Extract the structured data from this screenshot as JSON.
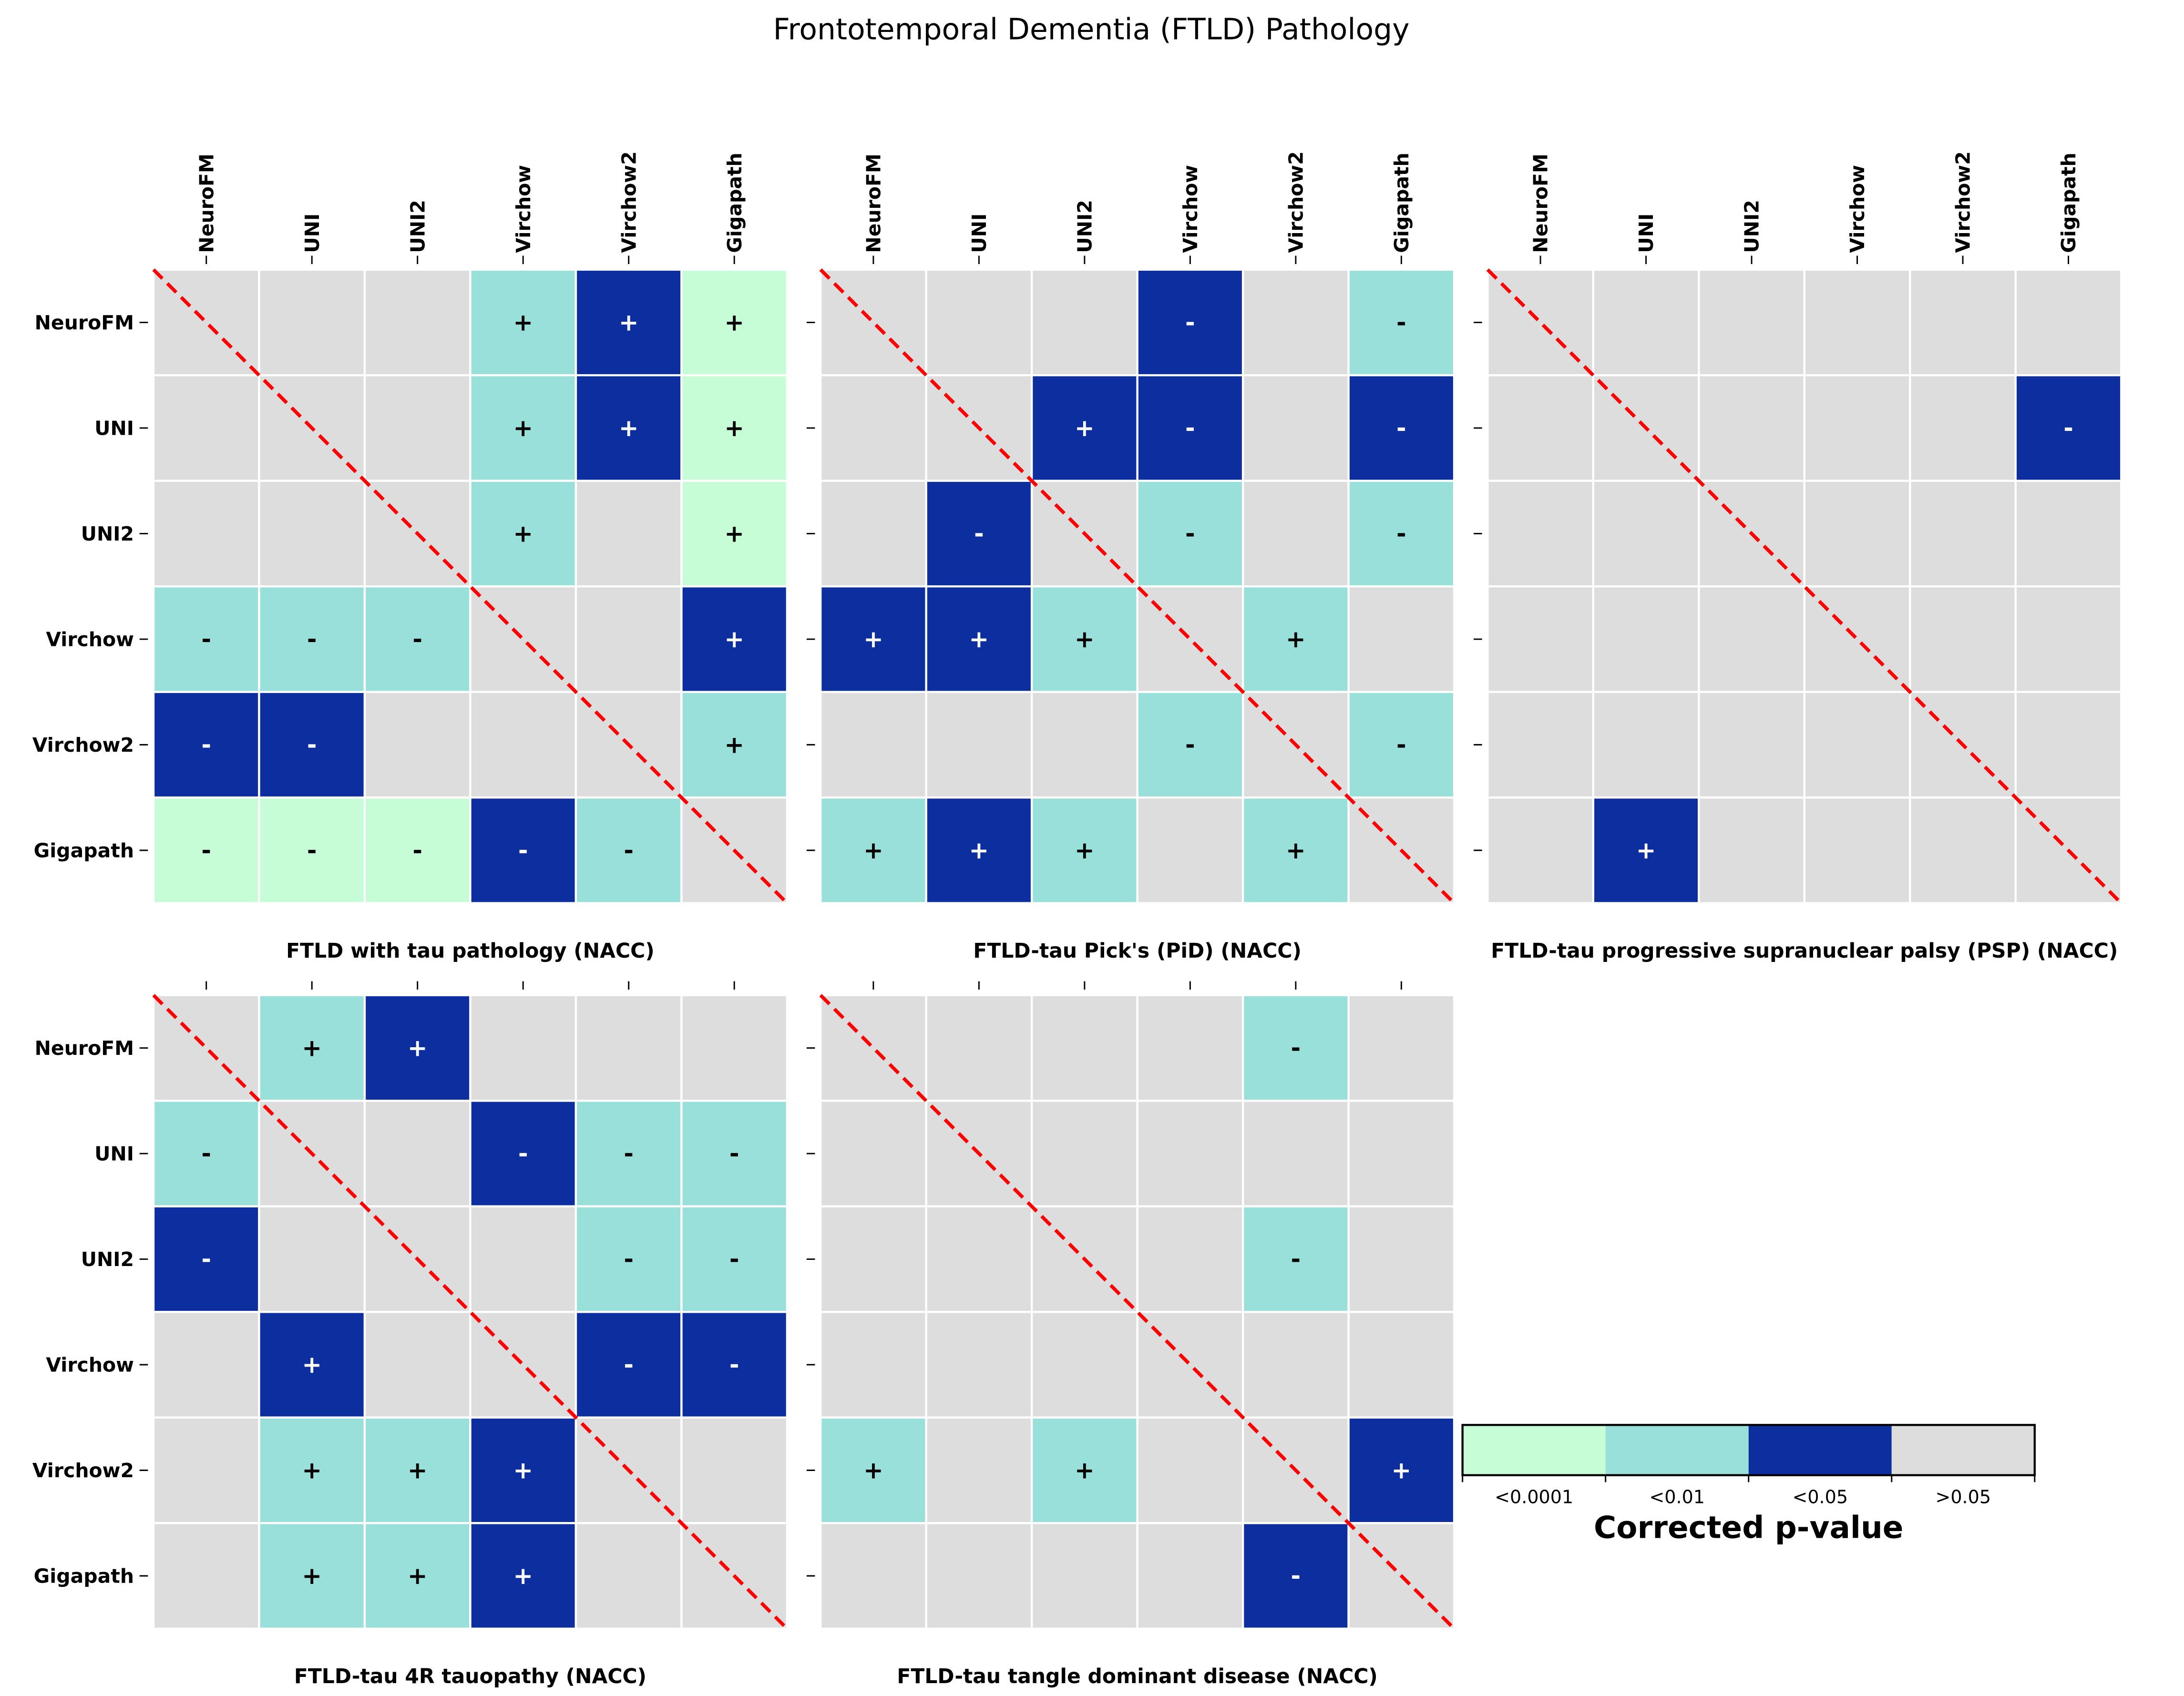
{
  "title": "Frontotemporal Dementia (FTLD) Pathology",
  "colors": {
    "L": "#c6fdd6",
    "M": "#99e0da",
    "D": "#0c2e9f",
    "G": "#dcdddc",
    "diagonal": "#ff0000"
  },
  "colorbar": {
    "title": "Corrected p-value",
    "levels": [
      {
        "code": "L",
        "label": "<0.0001"
      },
      {
        "code": "M",
        "label": "<0.01"
      },
      {
        "code": "D",
        "label": "<0.05"
      },
      {
        "code": "G",
        "label": ">0.05"
      }
    ]
  },
  "chart_data": [
    {
      "type": "heatmap",
      "title": "FTLD with tau pathology (NACC)",
      "rows": [
        "NeuroFM",
        "UNI",
        "UNI2",
        "Virchow",
        "Virchow2",
        "Gigapath"
      ],
      "cols": [
        "NeuroFM",
        "UNI",
        "UNI2",
        "Virchow",
        "Virchow2",
        "Gigapath"
      ],
      "cells": [
        [
          "G",
          "G",
          "G",
          "M+",
          "D+",
          "L+"
        ],
        [
          "G",
          "G",
          "G",
          "M+",
          "D+",
          "L+"
        ],
        [
          "G",
          "G",
          "G",
          "M+",
          "G",
          "L+"
        ],
        [
          "M-",
          "M-",
          "M-",
          "G",
          "G",
          "D+"
        ],
        [
          "D-",
          "D-",
          "G",
          "G",
          "G",
          "M+"
        ],
        [
          "L-",
          "L-",
          "L-",
          "D-",
          "M-",
          "G"
        ]
      ]
    },
    {
      "type": "heatmap",
      "title": "FTLD-tau Pick's (PiD) (NACC)",
      "rows": [
        "NeuroFM",
        "UNI",
        "UNI2",
        "Virchow",
        "Virchow2",
        "Gigapath"
      ],
      "cols": [
        "NeuroFM",
        "UNI",
        "UNI2",
        "Virchow",
        "Virchow2",
        "Gigapath"
      ],
      "cells": [
        [
          "G",
          "G",
          "G",
          "D-",
          "G",
          "M-"
        ],
        [
          "G",
          "G",
          "D+",
          "D-",
          "G",
          "D-"
        ],
        [
          "G",
          "D-",
          "G",
          "M-",
          "G",
          "M-"
        ],
        [
          "D+",
          "D+",
          "M+",
          "G",
          "M+",
          "G"
        ],
        [
          "G",
          "G",
          "G",
          "M-",
          "G",
          "M-"
        ],
        [
          "M+",
          "D+",
          "M+",
          "G",
          "M+",
          "G"
        ]
      ]
    },
    {
      "type": "heatmap",
      "title": "FTLD-tau progressive supranuclear palsy (PSP) (NACC)",
      "rows": [
        "NeuroFM",
        "UNI",
        "UNI2",
        "Virchow",
        "Virchow2",
        "Gigapath"
      ],
      "cols": [
        "NeuroFM",
        "UNI",
        "UNI2",
        "Virchow",
        "Virchow2",
        "Gigapath"
      ],
      "cells": [
        [
          "G",
          "G",
          "G",
          "G",
          "G",
          "G"
        ],
        [
          "G",
          "G",
          "G",
          "G",
          "G",
          "D-"
        ],
        [
          "G",
          "G",
          "G",
          "G",
          "G",
          "G"
        ],
        [
          "G",
          "G",
          "G",
          "G",
          "G",
          "G"
        ],
        [
          "G",
          "G",
          "G",
          "G",
          "G",
          "G"
        ],
        [
          "G",
          "D+",
          "G",
          "G",
          "G",
          "G"
        ]
      ]
    },
    {
      "type": "heatmap",
      "title": "FTLD-tau 4R tauopathy (NACC)",
      "rows": [
        "NeuroFM",
        "UNI",
        "UNI2",
        "Virchow",
        "Virchow2",
        "Gigapath"
      ],
      "cols": [
        "NeuroFM",
        "UNI",
        "UNI2",
        "Virchow",
        "Virchow2",
        "Gigapath"
      ],
      "cells": [
        [
          "G",
          "M+",
          "D+",
          "G",
          "G",
          "G"
        ],
        [
          "M-",
          "G",
          "G",
          "D-",
          "M-",
          "M-"
        ],
        [
          "D-",
          "G",
          "G",
          "G",
          "M-",
          "M-"
        ],
        [
          "G",
          "D+",
          "G",
          "G",
          "D-",
          "D-"
        ],
        [
          "G",
          "M+",
          "M+",
          "D+",
          "G",
          "G"
        ],
        [
          "G",
          "M+",
          "M+",
          "D+",
          "G",
          "G"
        ]
      ]
    },
    {
      "type": "heatmap",
      "title": "FTLD-tau tangle dominant disease (NACC)",
      "rows": [
        "NeuroFM",
        "UNI",
        "UNI2",
        "Virchow",
        "Virchow2",
        "Gigapath"
      ],
      "cols": [
        "NeuroFM",
        "UNI",
        "UNI2",
        "Virchow",
        "Virchow2",
        "Gigapath"
      ],
      "cells": [
        [
          "G",
          "G",
          "G",
          "G",
          "M-",
          "G"
        ],
        [
          "G",
          "G",
          "G",
          "G",
          "G",
          "G"
        ],
        [
          "G",
          "G",
          "G",
          "G",
          "M-",
          "G"
        ],
        [
          "G",
          "G",
          "G",
          "G",
          "G",
          "G"
        ],
        [
          "M+",
          "G",
          "M+",
          "G",
          "G",
          "D+"
        ],
        [
          "G",
          "G",
          "G",
          "G",
          "D-",
          "G"
        ]
      ]
    }
  ]
}
